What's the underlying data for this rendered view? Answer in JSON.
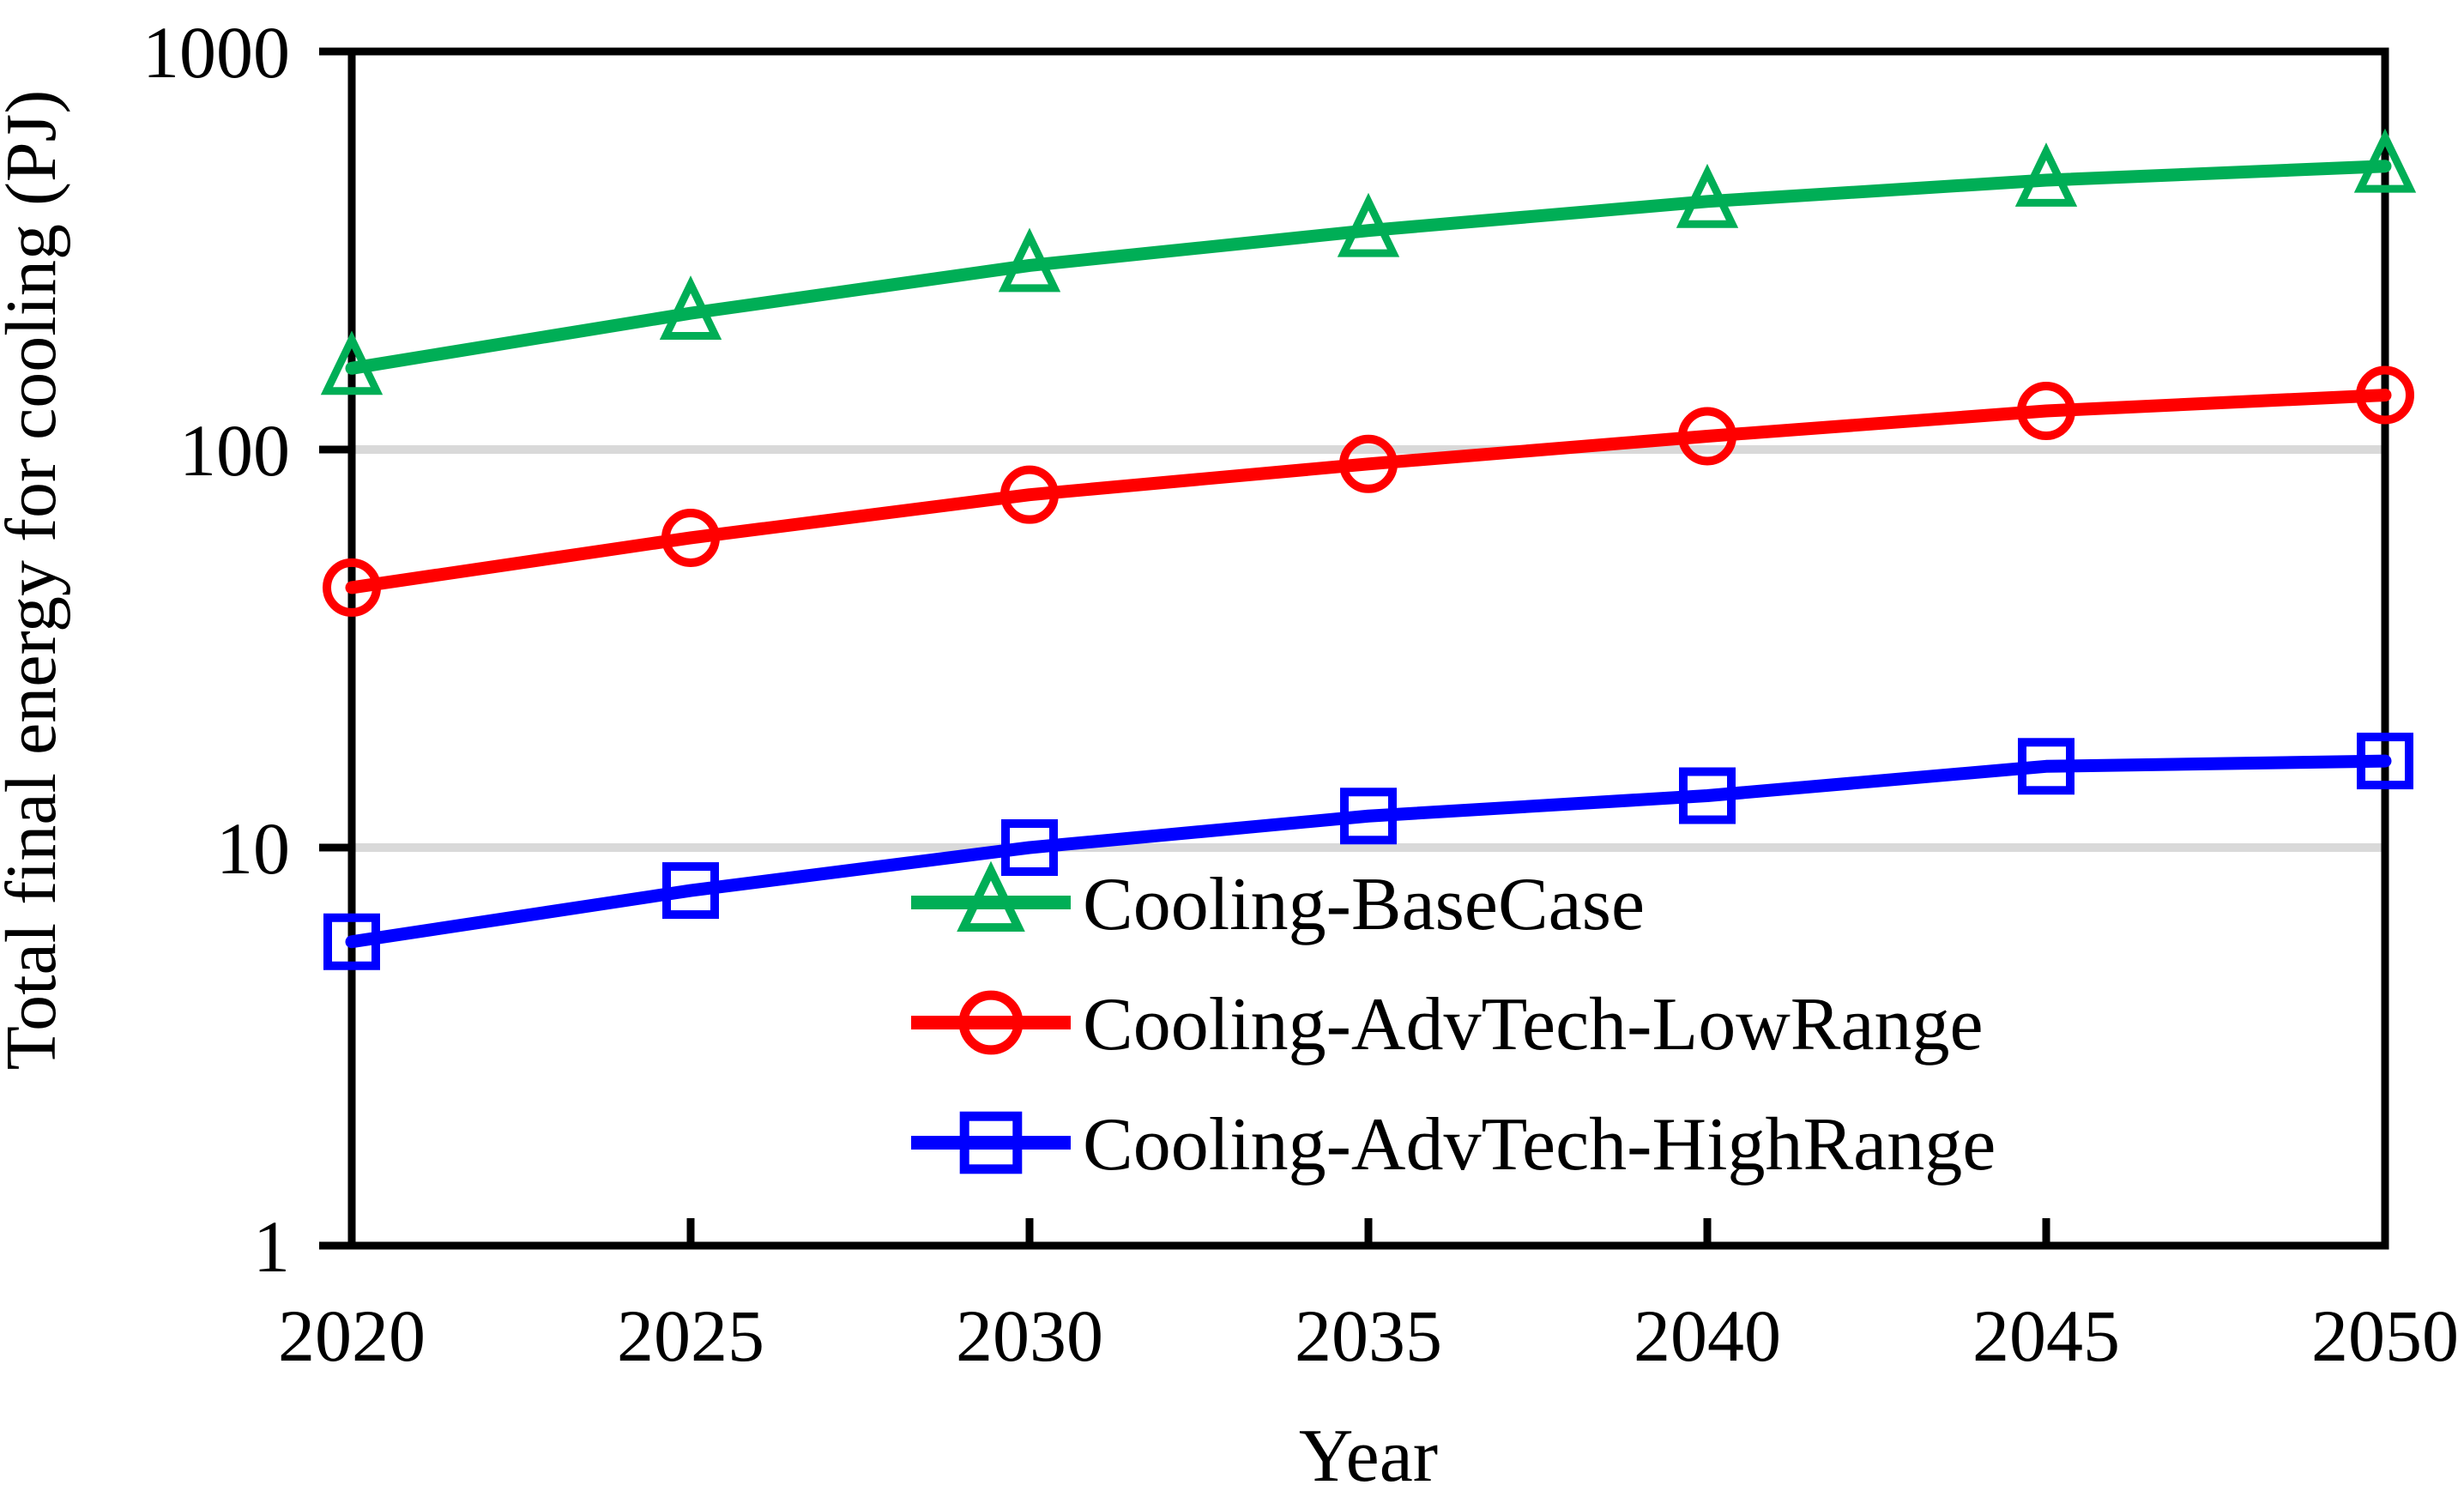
{
  "chart_data": {
    "type": "line",
    "title": "",
    "xlabel": "Year",
    "ylabel": "Total final energy for cooling (PJ)",
    "x": [
      2020,
      2025,
      2030,
      2035,
      2040,
      2045,
      2050
    ],
    "x_tick_labels": [
      "2020",
      "2025",
      "2030",
      "2035",
      "2040",
      "2045",
      "2050"
    ],
    "y_scale": "log10",
    "ylim": [
      1,
      1000
    ],
    "y_ticks": [
      1,
      10,
      100,
      1000
    ],
    "y_tick_labels": [
      "1",
      "10",
      "100",
      "1000"
    ],
    "gridlines_y": [
      10,
      100
    ],
    "grid_on": true,
    "legend_position": "inside-bottom-center",
    "colors": {
      "axis": "#000000",
      "grid": "#d9d9d9",
      "background": "#ffffff",
      "base_case": "#00ae56",
      "low_range": "#ff0000",
      "high_range": "#0000ff"
    },
    "series": [
      {
        "name": "Cooling-BaseCase",
        "marker": "triangle",
        "color": "#00ae56",
        "values": [
          160,
          220,
          290,
          355,
          420,
          475,
          515
        ]
      },
      {
        "name": "Cooling-AdvTech-LowRange",
        "marker": "circle",
        "color": "#ff0000",
        "values": [
          45,
          60,
          77,
          92,
          108,
          125,
          137
        ]
      },
      {
        "name": "Cooling-AdvTech-HighRange",
        "marker": "square",
        "color": "#0000ff",
        "values": [
          5.8,
          7.8,
          10,
          12,
          13.5,
          16,
          16.5
        ]
      }
    ]
  }
}
